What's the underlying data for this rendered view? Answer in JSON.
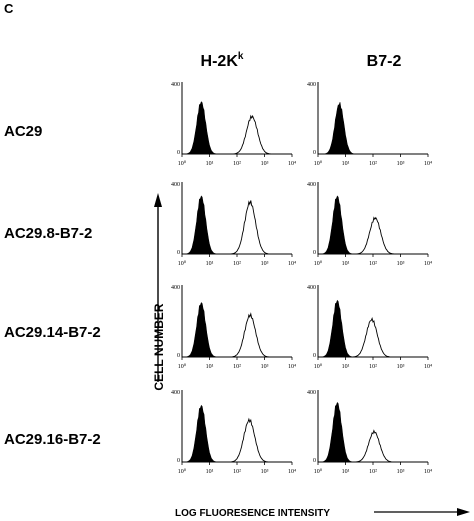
{
  "figure": {
    "panel_letter": "C",
    "y_axis_label": "CELL NUMBER",
    "x_axis_label": "LOG FLUORESENCE INTENSITY",
    "column_headers": [
      {
        "main": "H-2K",
        "superscript": "k"
      },
      {
        "main": "B7-2",
        "superscript": ""
      }
    ],
    "row_labels": [
      "AC29",
      "AC29.8-B7-2",
      "AC29.14-B7-2",
      "AC29.16-B7-2"
    ]
  },
  "chart_data": {
    "type": "histogram-grid",
    "x_scale": "log",
    "xlim": [
      1,
      10000
    ],
    "ylim": [
      0,
      400
    ],
    "x_tick_labels": [
      "10⁰",
      "10¹",
      "10²",
      "10³",
      "10⁴"
    ],
    "y_tick_labels": [
      "0",
      "400"
    ],
    "curve_fill": {
      "control": "filled black",
      "stained": "open outline"
    },
    "panels": [
      {
        "row": "AC29",
        "column": "H-2K",
        "control_peak": 5,
        "control_height": 0.72,
        "stained_peak": 350,
        "stained_height": 0.52
      },
      {
        "row": "AC29",
        "column": "B7-2",
        "control_peak": 6,
        "control_height": 0.7,
        "stained_peak": null,
        "stained_height": 0
      },
      {
        "row": "AC29.8-B7-2",
        "column": "H-2K",
        "control_peak": 5,
        "control_height": 0.8,
        "stained_peak": 300,
        "stained_height": 0.72
      },
      {
        "row": "AC29.8-B7-2",
        "column": "B7-2",
        "control_peak": 5,
        "control_height": 0.8,
        "stained_peak": 120,
        "stained_height": 0.5
      },
      {
        "row": "AC29.14-B7-2",
        "column": "H-2K",
        "control_peak": 5,
        "control_height": 0.75,
        "stained_peak": 300,
        "stained_height": 0.58
      },
      {
        "row": "AC29.14-B7-2",
        "column": "B7-2",
        "control_peak": 5,
        "control_height": 0.78,
        "stained_peak": 90,
        "stained_height": 0.52
      },
      {
        "row": "AC29.16-B7-2",
        "column": "H-2K",
        "control_peak": 5,
        "control_height": 0.78,
        "stained_peak": 280,
        "stained_height": 0.58
      },
      {
        "row": "AC29.16-B7-2",
        "column": "B7-2",
        "control_peak": 5,
        "control_height": 0.82,
        "stained_peak": 110,
        "stained_height": 0.42
      }
    ]
  }
}
